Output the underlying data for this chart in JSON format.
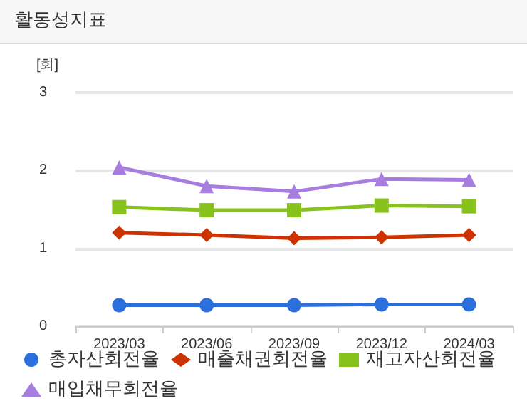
{
  "chart_data": {
    "type": "line",
    "title": "활동성지표",
    "ylabel": "[회]",
    "categories": [
      "2023/03",
      "2023/06",
      "2023/09",
      "2023/12",
      "2024/03"
    ],
    "series": [
      {
        "name": "총자산회전율",
        "color": "#2a6fdb",
        "marker": "circle",
        "values": [
          0.27,
          0.27,
          0.27,
          0.28,
          0.28
        ]
      },
      {
        "name": "매출채권회전율",
        "color": "#cc3300",
        "marker": "diamond",
        "values": [
          1.2,
          1.17,
          1.13,
          1.14,
          1.17
        ]
      },
      {
        "name": "재고자산회전율",
        "color": "#88c21c",
        "marker": "square",
        "values": [
          1.53,
          1.49,
          1.49,
          1.55,
          1.54
        ]
      },
      {
        "name": "매입채무회전율",
        "color": "#a87de0",
        "marker": "triangle",
        "values": [
          2.04,
          1.8,
          1.73,
          1.89,
          1.88
        ]
      }
    ],
    "ylim": [
      0,
      3
    ],
    "yticks": [
      0,
      1,
      2,
      3
    ],
    "grid": "y",
    "legend": "bottom"
  }
}
